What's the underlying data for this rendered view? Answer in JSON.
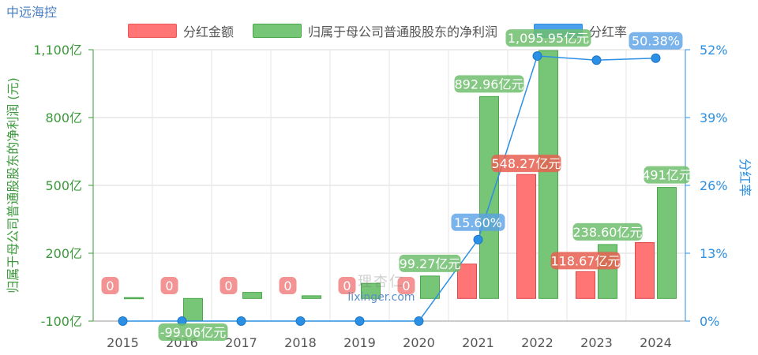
{
  "app": {
    "title": "中远海控"
  },
  "colors": {
    "dividend": "#ff6b6b",
    "net_profit": "#6cc06c",
    "payout": "#2b8fe3",
    "left_axis": "#3a9a3a",
    "right_axis": "#2b8fe3"
  },
  "watermark": {
    "cn": "理杏仁",
    "en": "lixinger.com"
  },
  "chart_data": {
    "type": "bar",
    "categories": [
      "2015",
      "2016",
      "2017",
      "2018",
      "2019",
      "2020",
      "2021",
      "2022",
      "2023",
      "2024"
    ],
    "series": [
      {
        "name": "分红金额",
        "kind": "bar",
        "axis": "left",
        "values": [
          0,
          0,
          0,
          0,
          0,
          0,
          152,
          548.27,
          118.67,
          247
        ],
        "labels": [
          "0",
          "0",
          "0",
          "0",
          "0",
          "0",
          "",
          "548.27亿元",
          "118.67亿元",
          ""
        ]
      },
      {
        "name": "归属于母公司普通股股东的净利润",
        "kind": "bar",
        "axis": "left",
        "values": [
          4,
          -99.06,
          27,
          12,
          67,
          99.27,
          892.96,
          1095.95,
          238.6,
          491
        ],
        "labels": [
          "",
          "-99.06亿元",
          "",
          "",
          "",
          "99.27亿元",
          "892.96亿元",
          "1,095.95亿元",
          "238.60亿元",
          "491亿元"
        ]
      },
      {
        "name": "分红率",
        "kind": "line",
        "axis": "right",
        "values": [
          0,
          0,
          0,
          0,
          0,
          0,
          15.6,
          50.8,
          50.0,
          50.38
        ],
        "labels": [
          "",
          "",
          "",
          "",
          "",
          "",
          "15.60%",
          "",
          "",
          "50.38%"
        ]
      }
    ],
    "y_left": {
      "label": "归属于母公司普通股股东的净利润 (元)",
      "ticks": [
        -100,
        200,
        500,
        800,
        1100
      ],
      "tick_labels": [
        "-100亿",
        "200亿",
        "500亿",
        "800亿",
        "1,100亿"
      ],
      "range": [
        -100,
        1100
      ]
    },
    "y_right": {
      "label": "分红率",
      "ticks": [
        0,
        13,
        26,
        39,
        52
      ],
      "tick_labels": [
        "0%",
        "13%",
        "26%",
        "39%",
        "52%"
      ],
      "range": [
        0,
        52
      ]
    },
    "legend": {
      "position": "top"
    },
    "grid": true
  }
}
